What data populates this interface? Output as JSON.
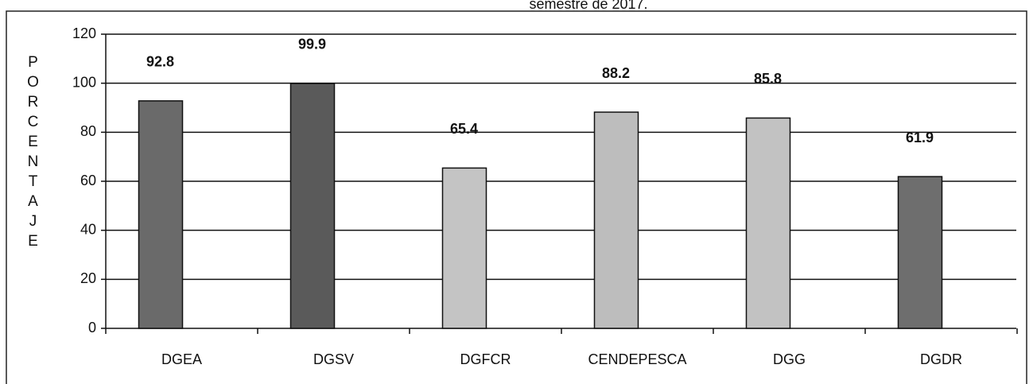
{
  "chart_data": {
    "type": "bar",
    "title": "semestre de 2017.",
    "y_label": "PORCENTAJE",
    "categories": [
      "DGEA",
      "DGSV",
      "DGFCR",
      "CENDEPESCA",
      "DGG",
      "DGDR"
    ],
    "values": [
      92.8,
      99.9,
      65.4,
      88.2,
      85.8,
      61.9
    ],
    "colors": [
      "#6a6a6a",
      "#5a5a5a",
      "#c4c4c4",
      "#bdbdbd",
      "#c2c2c2",
      "#6e6e6e"
    ],
    "ylim": [
      0,
      120
    ],
    "yticks": [
      0,
      20,
      40,
      60,
      80,
      100,
      120
    ],
    "grid": true
  }
}
